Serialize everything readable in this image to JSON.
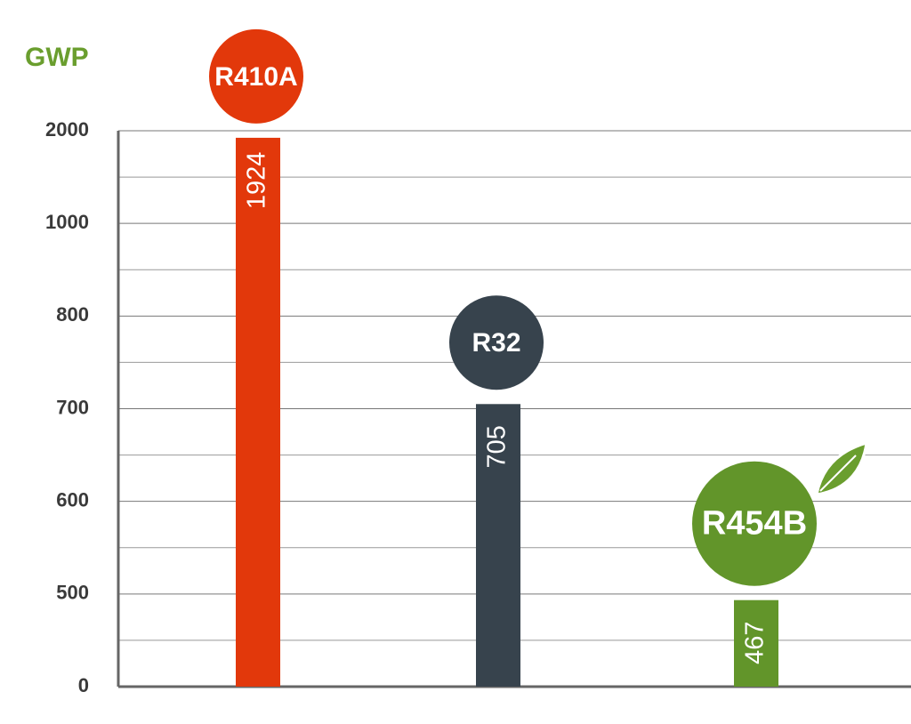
{
  "chart_data": {
    "type": "bar",
    "title": "GWP",
    "categories": [
      "R410A",
      "R32",
      "R454B"
    ],
    "values": [
      1924,
      705,
      467
    ],
    "colors": [
      "#e2380b",
      "#37434d",
      "#62952a"
    ],
    "ylim": [
      0,
      2000
    ],
    "yticks": [
      0,
      500,
      600,
      700,
      800,
      1000,
      2000
    ],
    "grid": true
  }
}
